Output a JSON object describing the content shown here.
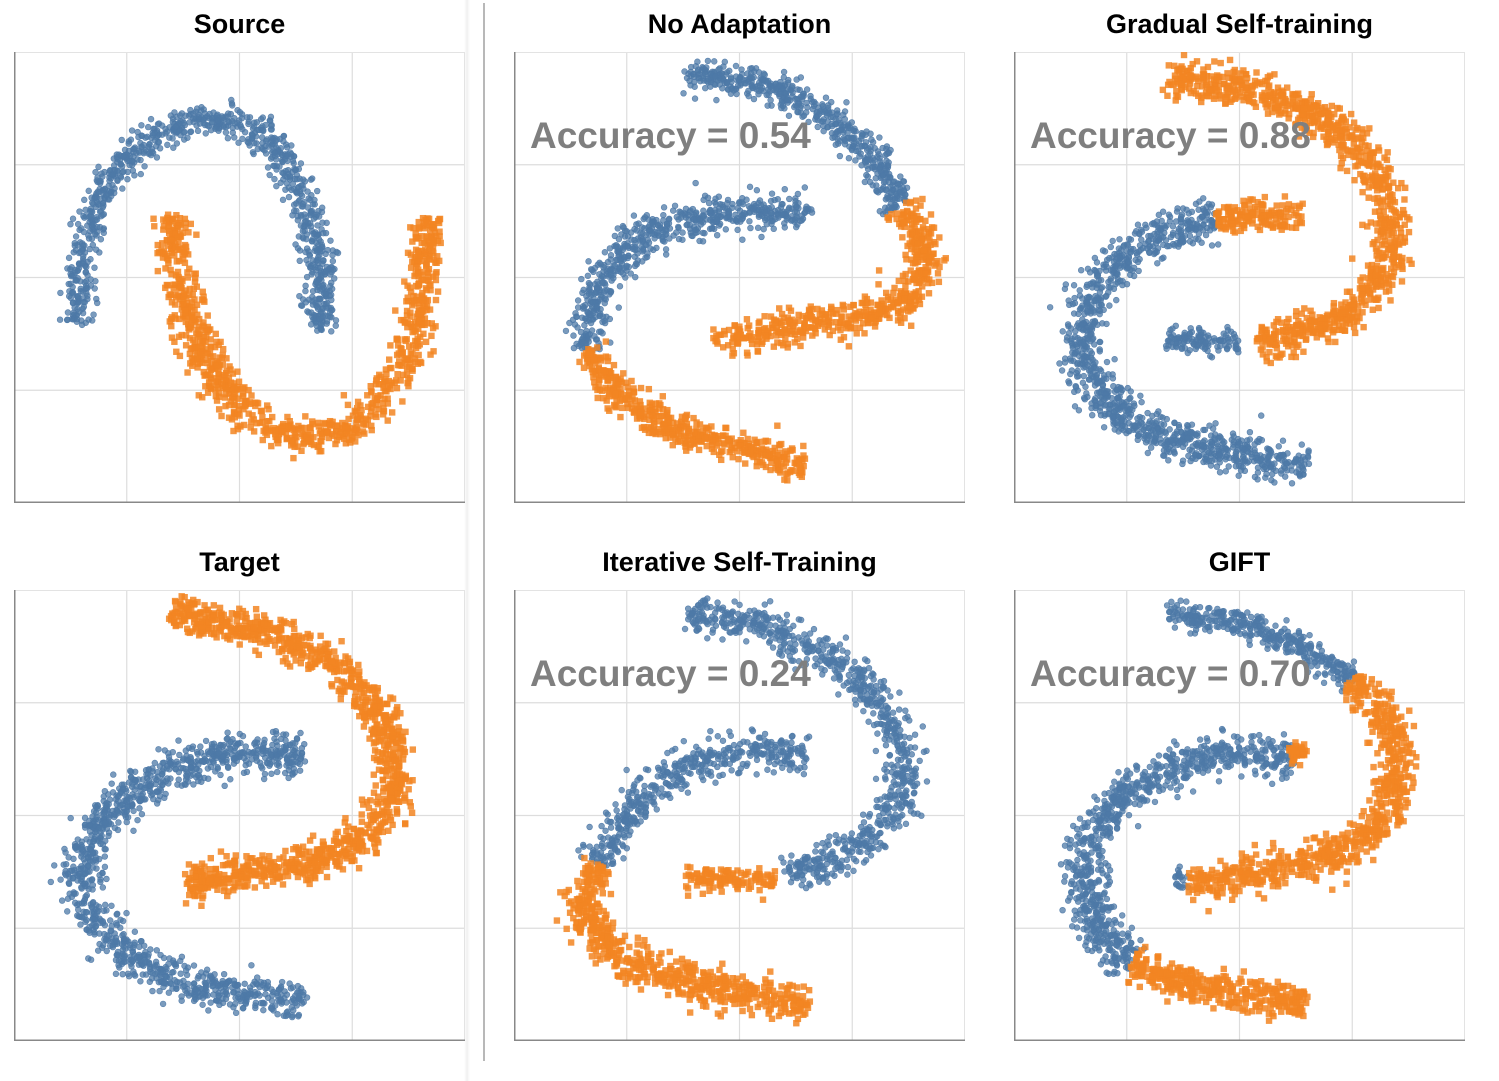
{
  "colors": {
    "blue": "#4e79a7",
    "orange": "#f28522",
    "grid": "#dddddd",
    "axis": "#888888",
    "accuracy_text": "#7f7f7f"
  },
  "chart_data": [
    {
      "id": "source",
      "type": "scatter",
      "title": "Source",
      "accuracy_label": "",
      "xlim": [
        -2.5,
        2.5
      ],
      "ylim": [
        -2.5,
        2.5
      ],
      "grid": true,
      "series": [
        {
          "color": "blue",
          "shape": "circle",
          "paths": [
            {
              "points": [
                [
                  -1.8,
                  -0.5
                ],
                [
                  -1.75,
                  0.2
                ],
                [
                  -1.55,
                  0.95
                ],
                [
                  -1.0,
                  1.55
                ],
                [
                  -0.25,
                  1.8
                ],
                [
                  0.35,
                  1.55
                ],
                [
                  0.75,
                  0.8
                ],
                [
                  0.9,
                  0.0
                ],
                [
                  0.9,
                  -0.6
                ]
              ],
              "count": 900,
              "width": 0.17
            }
          ]
        },
        {
          "color": "orange",
          "shape": "square",
          "paths": [
            {
              "points": [
                [
                  -0.75,
                  0.7
                ],
                [
                  -0.65,
                  -0.2
                ],
                [
                  -0.35,
                  -1.0
                ],
                [
                  0.25,
                  -1.65
                ],
                [
                  0.75,
                  -1.8
                ],
                [
                  1.35,
                  -1.6
                ],
                [
                  1.85,
                  -0.95
                ],
                [
                  2.05,
                  -0.1
                ],
                [
                  2.1,
                  0.65
                ]
              ],
              "count": 900,
              "width": 0.19
            }
          ]
        }
      ]
    },
    {
      "id": "no-adaptation",
      "type": "scatter",
      "title": "No Adaptation",
      "accuracy_label": "Accuracy = 0.54",
      "xlim": [
        -2.5,
        2.5
      ],
      "ylim": [
        -2.5,
        2.5
      ],
      "grid": true,
      "series": [
        {
          "color": "blue",
          "shape": "circle",
          "paths": [
            {
              "points": [
                [
                  -1.7,
                  -0.8
                ],
                [
                  -1.6,
                  -0.1
                ],
                [
                  -1.1,
                  0.45
                ],
                [
                  -0.3,
                  0.7
                ],
                [
                  0.4,
                  0.75
                ],
                [
                  0.8,
                  0.65
                ]
              ],
              "count": 600,
              "width": 0.2
            },
            {
              "points": [
                [
                  -0.6,
                  2.25
                ],
                [
                  0.2,
                  2.15
                ],
                [
                  0.9,
                  1.85
                ],
                [
                  1.45,
                  1.35
                ],
                [
                  1.8,
                  0.8
                ]
              ],
              "count": 520,
              "width": 0.17
            }
          ]
        },
        {
          "color": "orange",
          "shape": "square",
          "paths": [
            {
              "points": [
                [
                  1.8,
                  0.8
                ],
                [
                  2.1,
                  0.3
                ],
                [
                  1.9,
                  -0.25
                ],
                [
                  1.3,
                  -0.45
                ],
                [
                  0.6,
                  -0.55
                ],
                [
                  -0.25,
                  -0.7
                ]
              ],
              "count": 520,
              "width": 0.19
            },
            {
              "points": [
                [
                  -1.7,
                  -0.8
                ],
                [
                  -1.35,
                  -1.3
                ],
                [
                  -0.7,
                  -1.7
                ],
                [
                  0.1,
                  -1.9
                ],
                [
                  0.75,
                  -2.1
                ]
              ],
              "count": 460,
              "width": 0.17
            }
          ]
        }
      ]
    },
    {
      "id": "gradual-self-training",
      "type": "scatter",
      "title": "Gradual Self-training",
      "accuracy_label": "Accuracy = 0.88",
      "xlim": [
        -2.5,
        2.5
      ],
      "ylim": [
        -2.5,
        2.5
      ],
      "grid": true,
      "series": [
        {
          "color": "blue",
          "shape": "circle",
          "paths": [
            {
              "points": [
                [
                  -0.25,
                  0.65
                ],
                [
                  -0.95,
                  0.45
                ],
                [
                  -1.6,
                  -0.05
                ],
                [
                  -1.8,
                  -0.8
                ],
                [
                  -1.4,
                  -1.5
                ],
                [
                  -0.6,
                  -1.85
                ],
                [
                  0.3,
                  -2.0
                ],
                [
                  0.75,
                  -2.1
                ]
              ],
              "count": 1050,
              "width": 0.22
            },
            {
              "points": [
                [
                  -0.8,
                  -0.7
                ],
                [
                  -0.5,
                  -0.7
                ],
                [
                  -0.3,
                  -0.7
                ],
                [
                  0.0,
                  -0.7
                ]
              ],
              "count": 120,
              "width": 0.14
            }
          ]
        },
        {
          "color": "orange",
          "shape": "square",
          "paths": [
            {
              "points": [
                [
                  -0.25,
                  0.65
                ],
                [
                  0.3,
                  0.7
                ],
                [
                  0.7,
                  0.65
                ]
              ],
              "count": 150,
              "width": 0.16
            },
            {
              "points": [
                [
                  -0.8,
                  2.2
                ],
                [
                  0.1,
                  2.1
                ],
                [
                  1.05,
                  1.7
                ],
                [
                  1.6,
                  1.05
                ],
                [
                  1.7,
                  0.3
                ],
                [
                  1.35,
                  -0.35
                ],
                [
                  0.65,
                  -0.6
                ],
                [
                  0.2,
                  -0.75
                ]
              ],
              "count": 950,
              "width": 0.2
            }
          ]
        }
      ]
    },
    {
      "id": "target",
      "type": "scatter",
      "title": "Target",
      "accuracy_label": "",
      "xlim": [
        -2.5,
        2.5
      ],
      "ylim": [
        -2.5,
        2.5
      ],
      "grid": true,
      "series": [
        {
          "color": "blue",
          "shape": "circle",
          "paths": [
            {
              "points": [
                [
                  0.7,
                  0.65
                ],
                [
                  0.0,
                  0.7
                ],
                [
                  -0.9,
                  0.45
                ],
                [
                  -1.6,
                  -0.05
                ],
                [
                  -1.8,
                  -0.8
                ],
                [
                  -1.35,
                  -1.5
                ],
                [
                  -0.5,
                  -1.9
                ],
                [
                  0.4,
                  -2.0
                ],
                [
                  0.7,
                  -2.1
                ]
              ],
              "count": 1150,
              "width": 0.22
            }
          ]
        },
        {
          "color": "orange",
          "shape": "square",
          "paths": [
            {
              "points": [
                [
                  -0.75,
                  2.25
                ],
                [
                  0.1,
                  2.1
                ],
                [
                  1.05,
                  1.7
                ],
                [
                  1.65,
                  1.0
                ],
                [
                  1.75,
                  0.25
                ],
                [
                  1.3,
                  -0.35
                ],
                [
                  0.45,
                  -0.6
                ],
                [
                  -0.6,
                  -0.75
                ]
              ],
              "count": 1150,
              "width": 0.2
            }
          ]
        }
      ]
    },
    {
      "id": "iterative-self-training",
      "type": "scatter",
      "title": "Iterative Self-Training",
      "accuracy_label": "Accuracy = 0.24",
      "xlim": [
        -2.5,
        2.5
      ],
      "ylim": [
        -2.5,
        2.5
      ],
      "grid": true,
      "series": [
        {
          "color": "blue",
          "shape": "circle",
          "paths": [
            {
              "points": [
                [
                  -1.55,
                  -0.55
                ],
                [
                  -1.2,
                  0.15
                ],
                [
                  -0.45,
                  0.6
                ],
                [
                  0.3,
                  0.75
                ],
                [
                  0.75,
                  0.65
                ]
              ],
              "count": 450,
              "width": 0.2
            },
            {
              "points": [
                [
                  -0.6,
                  2.25
                ],
                [
                  0.3,
                  2.1
                ],
                [
                  1.2,
                  1.65
                ],
                [
                  1.75,
                  0.95
                ],
                [
                  1.85,
                  0.2
                ],
                [
                  1.35,
                  -0.35
                ],
                [
                  0.5,
                  -0.65
                ]
              ],
              "count": 800,
              "width": 0.2
            }
          ]
        },
        {
          "color": "orange",
          "shape": "square",
          "paths": [
            {
              "points": [
                [
                  -1.55,
                  -0.55
                ],
                [
                  -1.8,
                  -1.0
                ],
                [
                  -1.4,
                  -1.55
                ],
                [
                  -0.6,
                  -1.85
                ],
                [
                  0.2,
                  -2.0
                ],
                [
                  0.75,
                  -2.1
                ]
              ],
              "count": 600,
              "width": 0.21
            },
            {
              "points": [
                [
                  -0.6,
                  -0.7
                ],
                [
                  -0.1,
                  -0.7
                ],
                [
                  0.4,
                  -0.7
                ]
              ],
              "count": 120,
              "width": 0.14
            }
          ]
        }
      ]
    },
    {
      "id": "gift",
      "type": "scatter",
      "title": "GIFT",
      "accuracy_label": "Accuracy = 0.70",
      "xlim": [
        -2.5,
        2.5
      ],
      "ylim": [
        -2.5,
        2.5
      ],
      "grid": true,
      "series": [
        {
          "color": "blue",
          "shape": "circle",
          "paths": [
            {
              "points": [
                [
                  0.6,
                  0.65
                ],
                [
                  -0.1,
                  0.7
                ],
                [
                  -0.95,
                  0.45
                ],
                [
                  -1.6,
                  -0.05
                ],
                [
                  -1.75,
                  -0.8
                ],
                [
                  -1.45,
                  -1.45
                ],
                [
                  -1.2,
                  -1.65
                ]
              ],
              "count": 820,
              "width": 0.22
            },
            {
              "points": [
                [
                  -0.8,
                  2.25
                ],
                [
                  0.0,
                  2.15
                ],
                [
                  0.7,
                  1.85
                ],
                [
                  1.25,
                  1.5
                ]
              ],
              "count": 360,
              "width": 0.16
            },
            {
              "points": [
                [
                  -0.7,
                  -0.75
                ],
                [
                  -0.6,
                  -0.7
                ]
              ],
              "count": 20,
              "width": 0.12
            }
          ]
        },
        {
          "color": "orange",
          "shape": "square",
          "paths": [
            {
              "points": [
                [
                  -1.2,
                  -1.65
                ],
                [
                  -0.6,
                  -1.85
                ],
                [
                  0.2,
                  -2.0
                ],
                [
                  0.75,
                  -2.1
                ]
              ],
              "count": 380,
              "width": 0.18
            },
            {
              "points": [
                [
                  1.25,
                  1.5
                ],
                [
                  1.7,
                  1.0
                ],
                [
                  1.75,
                  0.25
                ],
                [
                  1.3,
                  -0.35
                ],
                [
                  0.5,
                  -0.6
                ],
                [
                  -0.55,
                  -0.75
                ]
              ],
              "count": 700,
              "width": 0.2
            },
            {
              "points": [
                [
                  0.55,
                  0.68
                ],
                [
                  0.75,
                  0.7
                ]
              ],
              "count": 40,
              "width": 0.1
            }
          ]
        }
      ]
    }
  ]
}
